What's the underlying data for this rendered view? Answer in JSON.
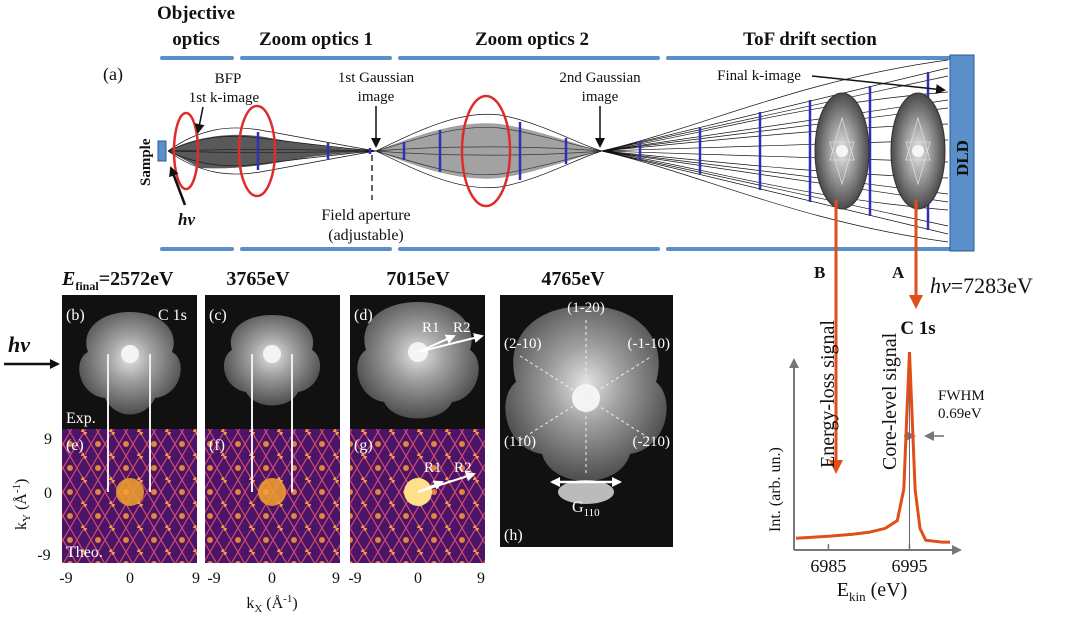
{
  "section_headers": {
    "objective_line1": "Objective",
    "objective_line2": "optics",
    "zoom1": "Zoom optics 1",
    "zoom2": "Zoom optics 2",
    "tof": "ToF drift section"
  },
  "panel_a": {
    "label": "(a)",
    "bfp": "BFP",
    "first_k": "1st k-image",
    "g1_line1": "1st Gaussian",
    "g1_line2": "image",
    "g2_line1": "2nd Gaussian",
    "g2_line2": "image",
    "final_k": "Final k-image",
    "sample": "Sample",
    "hv": "hν",
    "aperture_line1": "Field aperture",
    "aperture_line2": "(adjustable)",
    "dld": "DLD",
    "arrow_b": "B",
    "arrow_a": "A"
  },
  "energies": {
    "e_final": "E",
    "e_final_sub": "final",
    "e1": "=2572eV",
    "e2": "3765eV",
    "e3": "7015eV",
    "e4": "4765eV"
  },
  "hv_side": "hν",
  "panels": {
    "b": "(b)",
    "c": "(c)",
    "d": "(d)",
    "e": "(e)",
    "f": "(f)",
    "g": "(g)",
    "h": "(h)",
    "c1s": "C 1s",
    "exp": "Exp.",
    "theo": "Theo.",
    "r1": "R1",
    "r2": "R2"
  },
  "panel_h": {
    "top": "(1-20)",
    "left": "(2-10)",
    "right": "(-1-10)",
    "bottom_left": "(110)",
    "bottom_right": "(-210)",
    "g_label": "G",
    "g_sub": "110"
  },
  "axes_k": {
    "ky_label": "k",
    "ky_sub": "Y",
    "ky_unit": " (Å",
    "ky_sup": "-1",
    "ky_close": ")",
    "kx_label": "k",
    "kx_sub": "X",
    "kx_unit": " (Å",
    "kx_sup": "-1",
    "kx_close": ")",
    "ticks_y": [
      "9",
      "0",
      "-9"
    ],
    "ticks_x": [
      "-9",
      "0",
      "9"
    ]
  },
  "spectrum": {
    "hv_value": "=7283eV",
    "line": "C 1s",
    "energy_loss": "Energy-loss signal",
    "core_level": "Core-level signal",
    "fwhm": "FWHM",
    "fwhm_value": "0.69eV",
    "ylabel": "Int. (arb. un.)",
    "xlabel_main": "E",
    "xlabel_sub": "kin",
    "xlabel_unit": " (eV)",
    "xticks": [
      "6985",
      "6995"
    ]
  },
  "chart_data": {
    "type": "line",
    "x": [
      6981,
      6985,
      6988,
      6990,
      6992,
      6993.5,
      6994.3,
      6994.7,
      6995.0,
      6995.3,
      6995.7,
      6996.3,
      6997,
      6999,
      7000
    ],
    "series": [
      {
        "values": [
          0.05,
          0.06,
          0.07,
          0.08,
          0.1,
          0.14,
          0.3,
          0.7,
          1.0,
          0.7,
          0.3,
          0.1,
          0.04,
          0.03,
          0.03
        ]
      }
    ],
    "xlim": [
      6981,
      7000
    ],
    "xticks": [
      6985,
      6995
    ],
    "xlabel": "Ekin (eV)",
    "ylabel": "Int. (arb. un.)",
    "colors": {
      "curve": "#e04e1a"
    }
  },
  "colors": {
    "red_arrow": "#e04e1a",
    "blue_bar": "#5b8fc9",
    "lens_ring": "#dd2c2c",
    "slice_blue": "#2f2fb8",
    "theo_purple": "#6a1b7a",
    "theo_orange": "#f3a22c"
  }
}
